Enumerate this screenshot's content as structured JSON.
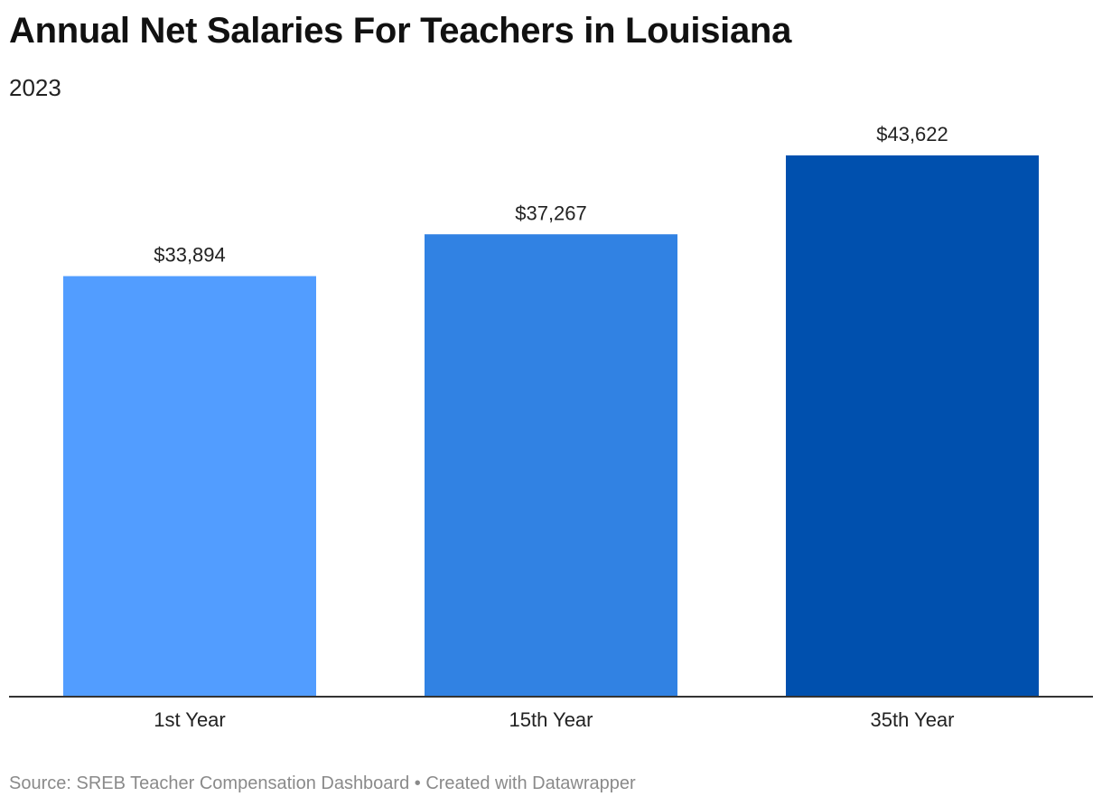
{
  "header": {
    "title": "Annual Net Salaries For Teachers in Louisiana",
    "subtitle": "2023"
  },
  "footer": {
    "source_text": "Source: SREB Teacher Compensation Dashboard • Created with Datawrapper"
  },
  "chart_data": {
    "type": "bar",
    "title": "Annual Net Salaries For Teachers in Louisiana",
    "subtitle": "2023",
    "categories": [
      "1st Year",
      "15th Year",
      "35th Year"
    ],
    "values": [
      33894,
      37267,
      43622
    ],
    "value_labels": [
      "$33,894",
      "$37,267",
      "$43,622"
    ],
    "colors": [
      "#529dff",
      "#3182e3",
      "#0050ae"
    ],
    "xlabel": "",
    "ylabel": "",
    "grid": false,
    "legend": "none"
  }
}
